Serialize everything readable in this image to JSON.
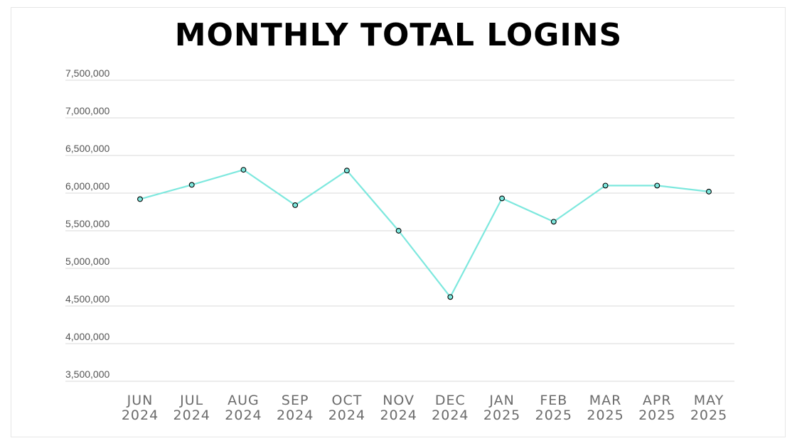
{
  "chart_data": {
    "type": "line",
    "title": "MONTHLY TOTAL LOGINS",
    "xlabel": "",
    "ylabel": "",
    "ylim": [
      3500000,
      7500000
    ],
    "yticks": [
      3500000,
      4000000,
      4500000,
      5000000,
      5500000,
      6000000,
      6500000,
      7000000,
      7500000
    ],
    "ytick_labels": [
      "3,500,000",
      "4,000,000",
      "4,500,000",
      "5,000,000",
      "5,500,000",
      "6,000,000",
      "6,500,000",
      "7,000,000",
      "7,500,000"
    ],
    "categories": [
      {
        "month": "JUN",
        "year": "2024"
      },
      {
        "month": "JUL",
        "year": "2024"
      },
      {
        "month": "AUG",
        "year": "2024"
      },
      {
        "month": "SEP",
        "year": "2024"
      },
      {
        "month": "OCT",
        "year": "2024"
      },
      {
        "month": "NOV",
        "year": "2024"
      },
      {
        "month": "DEC",
        "year": "2024"
      },
      {
        "month": "JAN",
        "year": "2025"
      },
      {
        "month": "FEB",
        "year": "2025"
      },
      {
        "month": "MAR",
        "year": "2025"
      },
      {
        "month": "APR",
        "year": "2025"
      },
      {
        "month": "MAY",
        "year": "2025"
      }
    ],
    "series": [
      {
        "values": [
          5920000,
          6110000,
          6310000,
          5840000,
          6300000,
          5500000,
          4620000,
          5930000,
          5620000,
          6100000,
          6100000,
          6020000
        ]
      }
    ],
    "line_color": "#7ee8de",
    "marker_fill": "#7ee8de",
    "marker_stroke": "#000000",
    "grid": true,
    "legend": "none"
  }
}
